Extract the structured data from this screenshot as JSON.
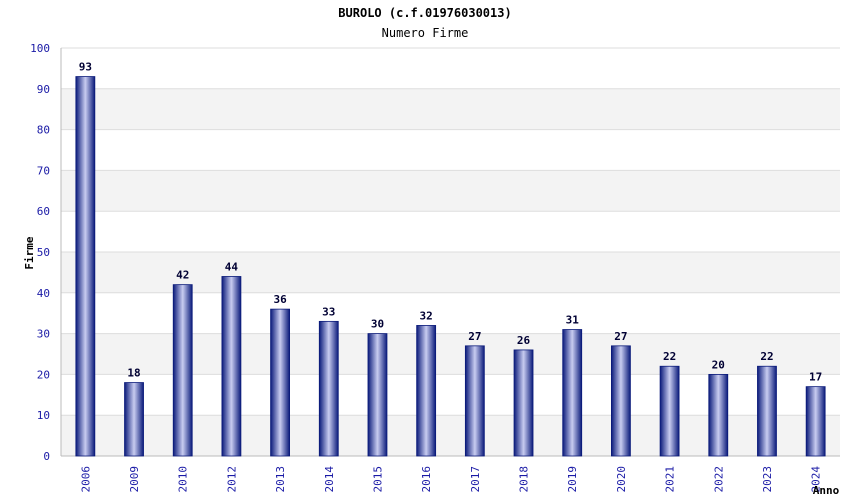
{
  "chart_data": {
    "type": "bar",
    "title": "BUROLO (c.f.01976030013)",
    "subtitle": "Numero Firme",
    "ylabel": "Firme",
    "xlabel": "Anno",
    "ylim": [
      0,
      100
    ],
    "yticks": [
      0,
      10,
      20,
      30,
      40,
      50,
      60,
      70,
      80,
      90,
      100
    ],
    "grid": true,
    "categories": [
      "2006",
      "2009",
      "2010",
      "2012",
      "2013",
      "2014",
      "2015",
      "2016",
      "2017",
      "2018",
      "2019",
      "2020",
      "2021",
      "2022",
      "2023",
      "2024"
    ],
    "values": [
      93,
      18,
      42,
      44,
      36,
      33,
      30,
      32,
      27,
      26,
      31,
      27,
      22,
      20,
      22,
      17
    ],
    "colors": {
      "bar_dark": "#0a1a7a",
      "bar_light": "#c8ccf0",
      "band": "#f3f3f3",
      "tick": "#1a1aa6"
    }
  }
}
